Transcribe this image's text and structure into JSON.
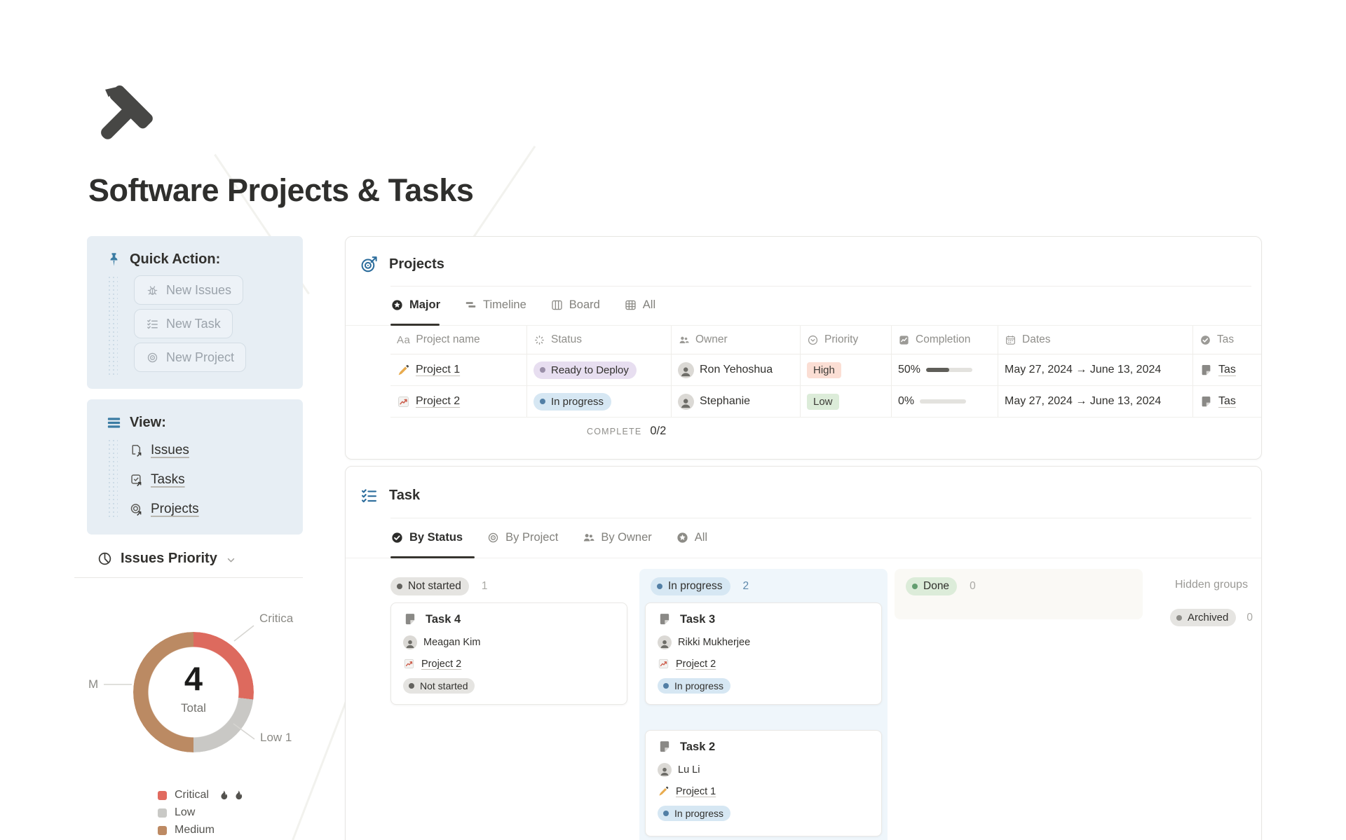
{
  "page": {
    "title": "Software Projects & Tasks"
  },
  "sidebar": {
    "quick_action": {
      "heading": "Quick Action:",
      "buttons": [
        {
          "icon": "bug-icon",
          "label": "New Issues"
        },
        {
          "icon": "checklist-icon",
          "label": "New Task"
        },
        {
          "icon": "target-icon",
          "label": "New Project"
        }
      ]
    },
    "view": {
      "heading": "View:",
      "links": [
        {
          "icon": "page-arrow-icon",
          "label": "Issues"
        },
        {
          "icon": "checkbox-arrow-icon",
          "label": "Tasks"
        },
        {
          "icon": "target-arrow-icon",
          "label": "Projects"
        }
      ]
    },
    "issues_priority_label": "Issues Priority"
  },
  "chart_data": {
    "type": "pie",
    "title": "Issues Priority",
    "center_value": "4",
    "center_label": "Total",
    "slices": [
      {
        "label": "Critical 🔥🔥",
        "value": 1,
        "color": "#dd6a5e",
        "start_deg": 0,
        "end_deg": 97
      },
      {
        "label": "Low",
        "value": 1,
        "color": "#c9c8c5",
        "start_deg": 97,
        "end_deg": 180
      },
      {
        "label": "Medium",
        "value": 2,
        "color": "#bb8a63",
        "start_deg": 180,
        "end_deg": 360
      }
    ],
    "callouts": {
      "critical": "Critica",
      "medium": "M",
      "low": "Low 1"
    },
    "legend": [
      {
        "label": "Critical",
        "flames": 2,
        "color": "#e16a5f"
      },
      {
        "label": "Low",
        "flames": 0,
        "color": "#c9c9c6"
      },
      {
        "label": "Medium",
        "flames": 0,
        "color": "#bd8a63"
      }
    ],
    "legend_position": "bottom-left",
    "total": 4
  },
  "projects": {
    "title": "Projects",
    "tabs": [
      {
        "label": "Major",
        "active": true
      },
      {
        "label": "Timeline",
        "active": false
      },
      {
        "label": "Board",
        "active": false
      },
      {
        "label": "All",
        "active": false
      }
    ],
    "columns": [
      {
        "label": "Project name"
      },
      {
        "label": "Status"
      },
      {
        "label": "Owner"
      },
      {
        "label": "Priority"
      },
      {
        "label": "Completion"
      },
      {
        "label": "Dates"
      },
      {
        "label": "Tas"
      }
    ],
    "rows": [
      {
        "name": "Project 1",
        "status": "Ready to Deploy",
        "owner": "Ron Yehoshua",
        "priority": "High",
        "completion": "50%",
        "completion_pct": 50,
        "dates": "May 27, 2024 → June 13, 2024",
        "task": "Tas"
      },
      {
        "name": "Project 2",
        "status": "In progress",
        "owner": "Stephanie",
        "priority": "Low",
        "completion": "0%",
        "completion_pct": 0,
        "dates": "May 27, 2024 → June 13, 2024",
        "task": "Tas"
      }
    ],
    "footer": {
      "label": "COMPLETE",
      "value": "0/2"
    }
  },
  "tasks": {
    "title": "Task",
    "tabs": [
      {
        "label": "By Status",
        "active": true
      },
      {
        "label": "By Project",
        "active": false
      },
      {
        "label": "By Owner",
        "active": false
      },
      {
        "label": "All",
        "active": false
      }
    ],
    "groups": [
      {
        "name": "Not started",
        "count": "1"
      },
      {
        "name": "In progress",
        "count": "2"
      },
      {
        "name": "Done",
        "count": "0"
      }
    ],
    "cards": [
      {
        "title": "Task 4",
        "owner": "Meagan Kim",
        "project": "Project 2",
        "status": "Not started"
      },
      {
        "title": "Task 3",
        "owner": "Rikki Mukherjee",
        "project": "Project 2",
        "status": "In progress"
      },
      {
        "title": "Task 2",
        "owner": "Lu Li",
        "project": "Project 1",
        "status": "In progress"
      }
    ],
    "hidden_groups": {
      "label": "Hidden groups",
      "pill": "Archived",
      "count": "0"
    }
  },
  "colors": {
    "sidebar_card_bg": "#e7eef4",
    "accent_blue": "#3b7ca3",
    "text_dark": "#32312e",
    "text_gray": "#8f8e8a",
    "pill_purple": "#e7def0",
    "pill_blue": "#d6e7f3",
    "pill_green": "#dcecd9",
    "pill_gray": "#e5e4e1",
    "tag_red": "#fbded4",
    "inprogress_column_bg": "#eff6fb"
  }
}
